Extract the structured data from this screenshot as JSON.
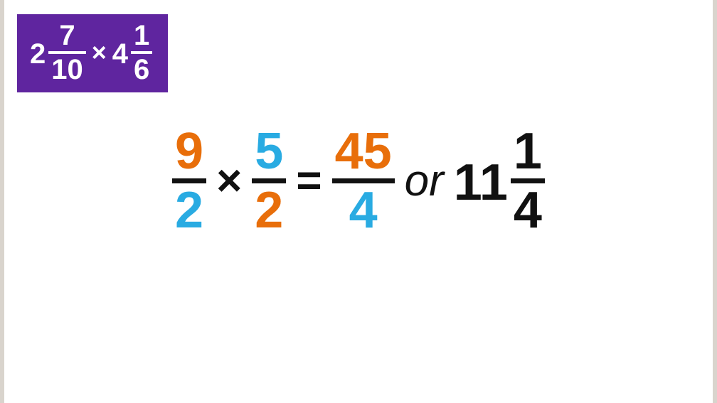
{
  "colors": {
    "page_bg": "#d9d4cd",
    "canvas_bg": "#ffffff",
    "box_bg": "#5f259f",
    "box_fg": "#ffffff",
    "orange": "#e86e0a",
    "blue": "#29abe2",
    "black": "#111111"
  },
  "problem": {
    "a": {
      "whole": "2",
      "num": "7",
      "den": "10"
    },
    "op": "×",
    "b": {
      "whole": "4",
      "num": "1",
      "den": "6"
    }
  },
  "equation": {
    "f1": {
      "num": "9",
      "den": "2"
    },
    "op1": "×",
    "f2": {
      "num": "5",
      "den": "2"
    },
    "eq": "=",
    "f3": {
      "num": "45",
      "den": "4"
    },
    "or_text": "or",
    "mixed": {
      "whole": "11",
      "num": "1",
      "den": "4"
    }
  },
  "style": {
    "f1_num_color": "#e86e0a",
    "f1_den_color": "#29abe2",
    "f1_bar_color": "#111111",
    "f2_num_color": "#29abe2",
    "f2_den_color": "#e86e0a",
    "f2_bar_color": "#111111",
    "f3_num_color": "#e86e0a",
    "f3_den_color": "#29abe2",
    "f3_bar_color": "#111111",
    "op_color": "#111111",
    "or_color": "#111111",
    "mixed_color": "#111111",
    "mixed_bar_color": "#111111"
  }
}
